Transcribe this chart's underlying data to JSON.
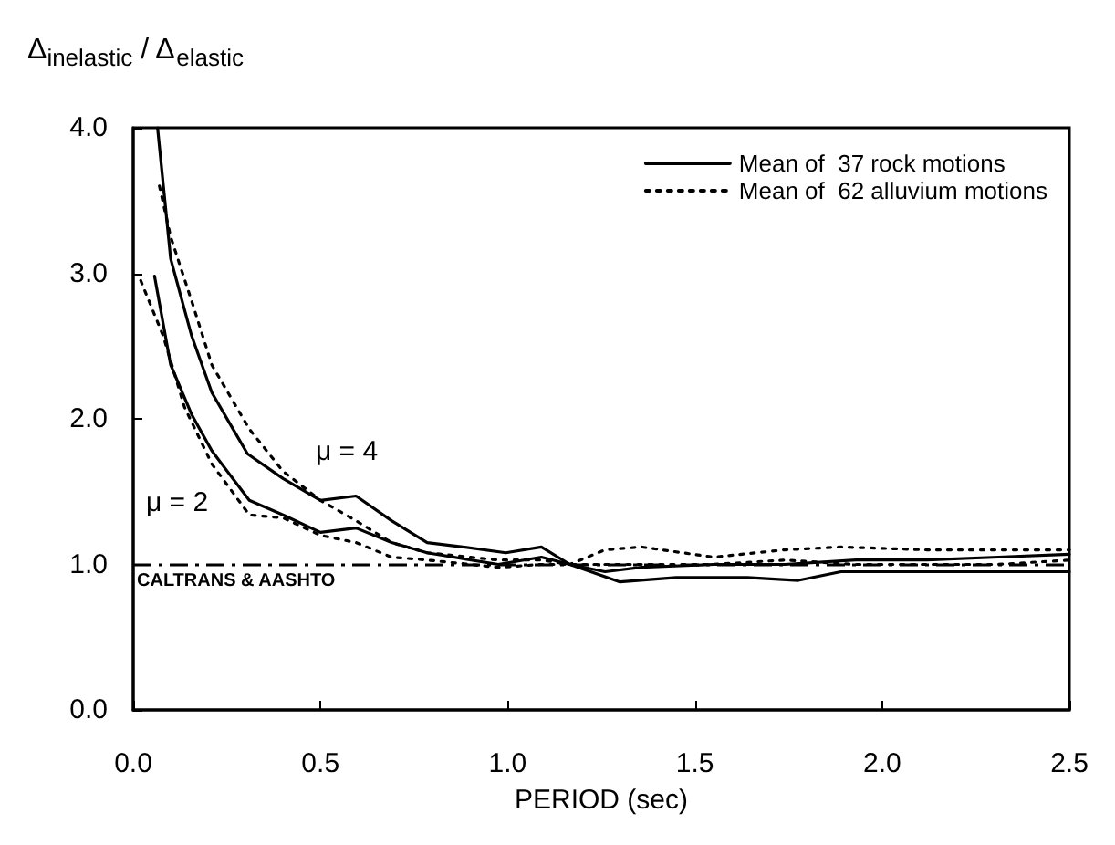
{
  "chart_data": {
    "type": "line",
    "xlabel": "PERIOD (sec)",
    "ylabel": "Δ$_{inelastic}$ / Δ$_{elastic}$",
    "xlim": [
      0,
      2.5
    ],
    "xticks": [
      {
        "value": 0,
        "label": "0.0"
      },
      0.5,
      {
        "value": 1,
        "label": "1.0"
      },
      1.5,
      {
        "value": 2,
        "label": "2.0"
      },
      2.5
    ],
    "ylim": [
      0,
      4
    ],
    "yticks": [
      {
        "value": 0,
        "label": "0.0"
      },
      {
        "value": 1,
        "label": "1.0"
      },
      {
        "value": 2,
        "label": "2.0"
      },
      {
        "value": 3,
        "label": "3.0"
      },
      {
        "value": 4,
        "label": "4.0"
      }
    ],
    "grid": false,
    "legend": "top right",
    "marker": "none",
    "series": [
      {
        "name": "Mean of  37 rock motions",
        "color": "#000000",
        "line_style": "solid",
        "x": [
          0.065,
          0.1,
          0.156,
          0.21,
          0.305,
          0.4,
          0.5,
          0.595,
          0.69,
          0.785,
          0.88,
          0.995,
          1.09,
          1.166,
          1.26,
          1.357,
          1.55,
          1.74,
          1.93,
          2.12,
          2.31,
          2.5
        ],
        "values": [
          4.0,
          3.1,
          2.57,
          2.18,
          1.76,
          1.59,
          1.44,
          1.47,
          1.3,
          1.15,
          1.12,
          1.08,
          1.12,
          1.0,
          0.95,
          0.98,
          1.0,
          1.0,
          1.03,
          1.03,
          1.05,
          1.07
        ]
      },
      {
        "color": "#000000",
        "line_style": "solid",
        "x": [
          0.057,
          0.1,
          0.156,
          0.21,
          0.31,
          0.4,
          0.5,
          0.595,
          0.69,
          0.785,
          0.975,
          1.09,
          1.166,
          1.3,
          1.45,
          1.64,
          1.776,
          1.89,
          2.12,
          2.31,
          2.5
        ],
        "values": [
          2.98,
          2.37,
          2.03,
          1.78,
          1.44,
          1.34,
          1.22,
          1.25,
          1.15,
          1.08,
          1.0,
          1.05,
          1.0,
          0.88,
          0.91,
          0.91,
          0.89,
          0.95,
          0.95,
          0.95,
          0.95
        ]
      },
      {
        "name": "Mean of  62 alluvium motions",
        "color": "#000000",
        "line_style": "dotted",
        "x": [
          0.07,
          0.1,
          0.156,
          0.21,
          0.31,
          0.4,
          0.5,
          0.595,
          0.69,
          0.785,
          0.975,
          1.09,
          1.166,
          1.26,
          1.357,
          1.55,
          1.74,
          1.89,
          2.12,
          2.31,
          2.5
        ],
        "values": [
          3.6,
          3.25,
          2.81,
          2.37,
          1.93,
          1.64,
          1.44,
          1.3,
          1.15,
          1.08,
          1.03,
          1.03,
          1.0,
          1.1,
          1.12,
          1.05,
          1.1,
          1.12,
          1.1,
          1.1,
          1.1
        ]
      },
      {
        "color": "#000000",
        "line_style": "dotted",
        "x": [
          0.02,
          0.08,
          0.137,
          0.21,
          0.31,
          0.4,
          0.5,
          0.595,
          0.69,
          0.785,
          0.975,
          1.09,
          1.166,
          1.357,
          1.55,
          1.74,
          1.93,
          2.12,
          2.31,
          2.5
        ],
        "values": [
          2.95,
          2.57,
          2.08,
          1.69,
          1.34,
          1.32,
          1.2,
          1.15,
          1.05,
          1.03,
          0.98,
          1.0,
          1.0,
          1.0,
          1.0,
          1.03,
          1.0,
          1.0,
          1.0,
          1.03
        ]
      }
    ],
    "ref_lines": [
      {
        "axis": "y",
        "value": 1,
        "label": "CALTRANS & AASHTO",
        "color": "#000000",
        "line_style": "dashdot"
      }
    ],
    "annotations": [
      "μ = 4",
      "μ = 2"
    ]
  }
}
